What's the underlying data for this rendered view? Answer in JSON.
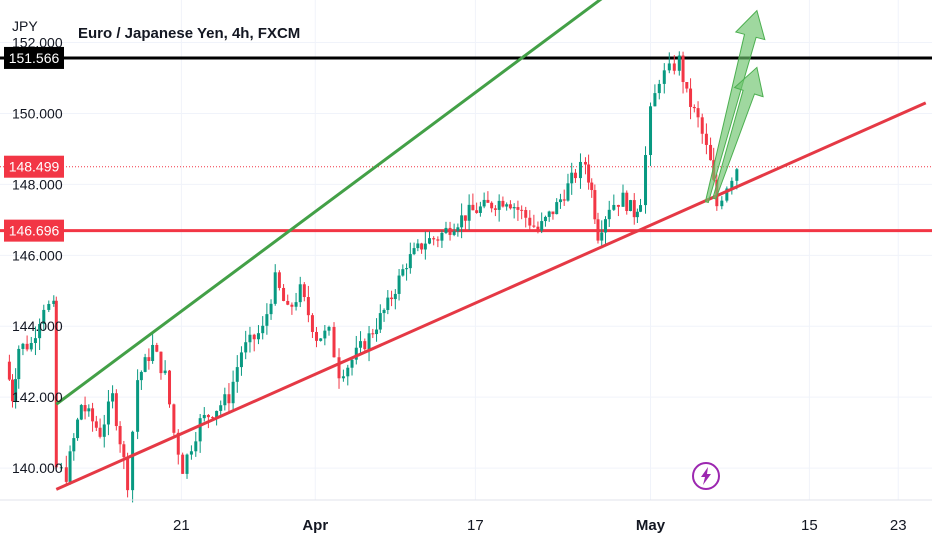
{
  "chart_data": {
    "type": "candlestick",
    "title": "Euro / Japanese Yen, 4h, FXCM",
    "unit_label": "JPY",
    "ylim": [
      139.1,
      153.2
    ],
    "xlim": [
      -5.5,
      69
    ],
    "y_ticks": [
      "140.000",
      "142.000",
      "144.000",
      "146.000",
      "148.000",
      "150.000",
      "152.000"
    ],
    "x_ticks": [
      {
        "label": "21",
        "x": 9,
        "bold": false
      },
      {
        "label": "Apr",
        "x": 19.7,
        "bold": true
      },
      {
        "label": "17",
        "x": 32.5,
        "bold": false
      },
      {
        "label": "May",
        "x": 46.5,
        "bold": true
      },
      {
        "label": "15",
        "x": 59.2,
        "bold": false
      },
      {
        "label": "23",
        "x": 66.3,
        "bold": false
      }
    ],
    "horizontal_levels": [
      {
        "label": "151.566",
        "value": 151.566,
        "color": "#000000",
        "style": "solid"
      },
      {
        "label": "148.499",
        "value": 148.499,
        "color": "#f23645",
        "style": "dotted"
      },
      {
        "label": "146.696",
        "value": 146.696,
        "color": "#f23645",
        "style": "solid"
      }
    ],
    "trendlines": [
      {
        "name": "upper channel",
        "color": "#43a047",
        "from": [
          -1,
          141.8
        ],
        "to": [
          53.5,
          156.1
        ]
      },
      {
        "name": "lower channel",
        "color": "#e53945",
        "from": [
          -1,
          139.4
        ],
        "to": [
          68.5,
          150.3
        ]
      }
    ],
    "arrows": [
      {
        "color": "#6cc36c",
        "from": [
          51,
          147.5
        ],
        "to": [
          55,
          152.9
        ]
      },
      {
        "color": "#6cc36c",
        "from": [
          51.6,
          147.6
        ],
        "to": [
          55,
          151.3
        ]
      }
    ],
    "candle_anchors": [
      [
        -5,
        143.0
      ],
      [
        -4.5,
        142.0
      ],
      [
        -4,
        143.4
      ],
      [
        -3,
        143.5
      ],
      [
        -2,
        144.6
      ],
      [
        -1.2,
        144.5
      ],
      [
        -1,
        140.0
      ],
      [
        -0.2,
        139.8
      ],
      [
        1,
        141.8
      ],
      [
        2.5,
        141.0
      ],
      [
        3.5,
        142.0
      ],
      [
        4.7,
        139.6
      ],
      [
        5.5,
        142.5
      ],
      [
        6.7,
        143.4
      ],
      [
        7.7,
        142.6
      ],
      [
        8.4,
        141.0
      ],
      [
        9.1,
        140.0
      ],
      [
        10.5,
        141.3
      ],
      [
        12.8,
        142.0
      ],
      [
        13.8,
        143.3
      ],
      [
        15.5,
        143.9
      ],
      [
        16.5,
        145.3
      ],
      [
        17.5,
        144.4
      ],
      [
        18.5,
        145.0
      ],
      [
        19.8,
        143.7
      ],
      [
        20.8,
        143.8
      ],
      [
        21.6,
        142.7
      ],
      [
        22.3,
        142.9
      ],
      [
        24,
        143.7
      ],
      [
        25.5,
        144.6
      ],
      [
        27,
        145.8
      ],
      [
        28.5,
        146.4
      ],
      [
        29.5,
        146.5
      ],
      [
        30.8,
        146.9
      ],
      [
        32,
        147.2
      ],
      [
        33.5,
        147.4
      ],
      [
        35,
        147.6
      ],
      [
        36.2,
        147.2
      ],
      [
        37.5,
        146.7
      ],
      [
        39,
        147.4
      ],
      [
        40.5,
        148.3
      ],
      [
        41.3,
        148.6
      ],
      [
        41.8,
        147.8
      ],
      [
        42.3,
        146.6
      ],
      [
        43.2,
        147.4
      ],
      [
        44.3,
        147.6
      ],
      [
        45.2,
        147.2
      ],
      [
        45.7,
        147.6
      ],
      [
        46.5,
        150.0
      ],
      [
        47.2,
        151.0
      ],
      [
        48,
        151.2
      ],
      [
        48.8,
        151.5
      ],
      [
        49.4,
        150.5
      ],
      [
        50.3,
        149.8
      ],
      [
        51.3,
        148.6
      ],
      [
        51.8,
        147.4
      ],
      [
        52.6,
        148.0
      ],
      [
        53.4,
        148.5
      ]
    ]
  },
  "bolt_icon_color": "#9c27b0"
}
